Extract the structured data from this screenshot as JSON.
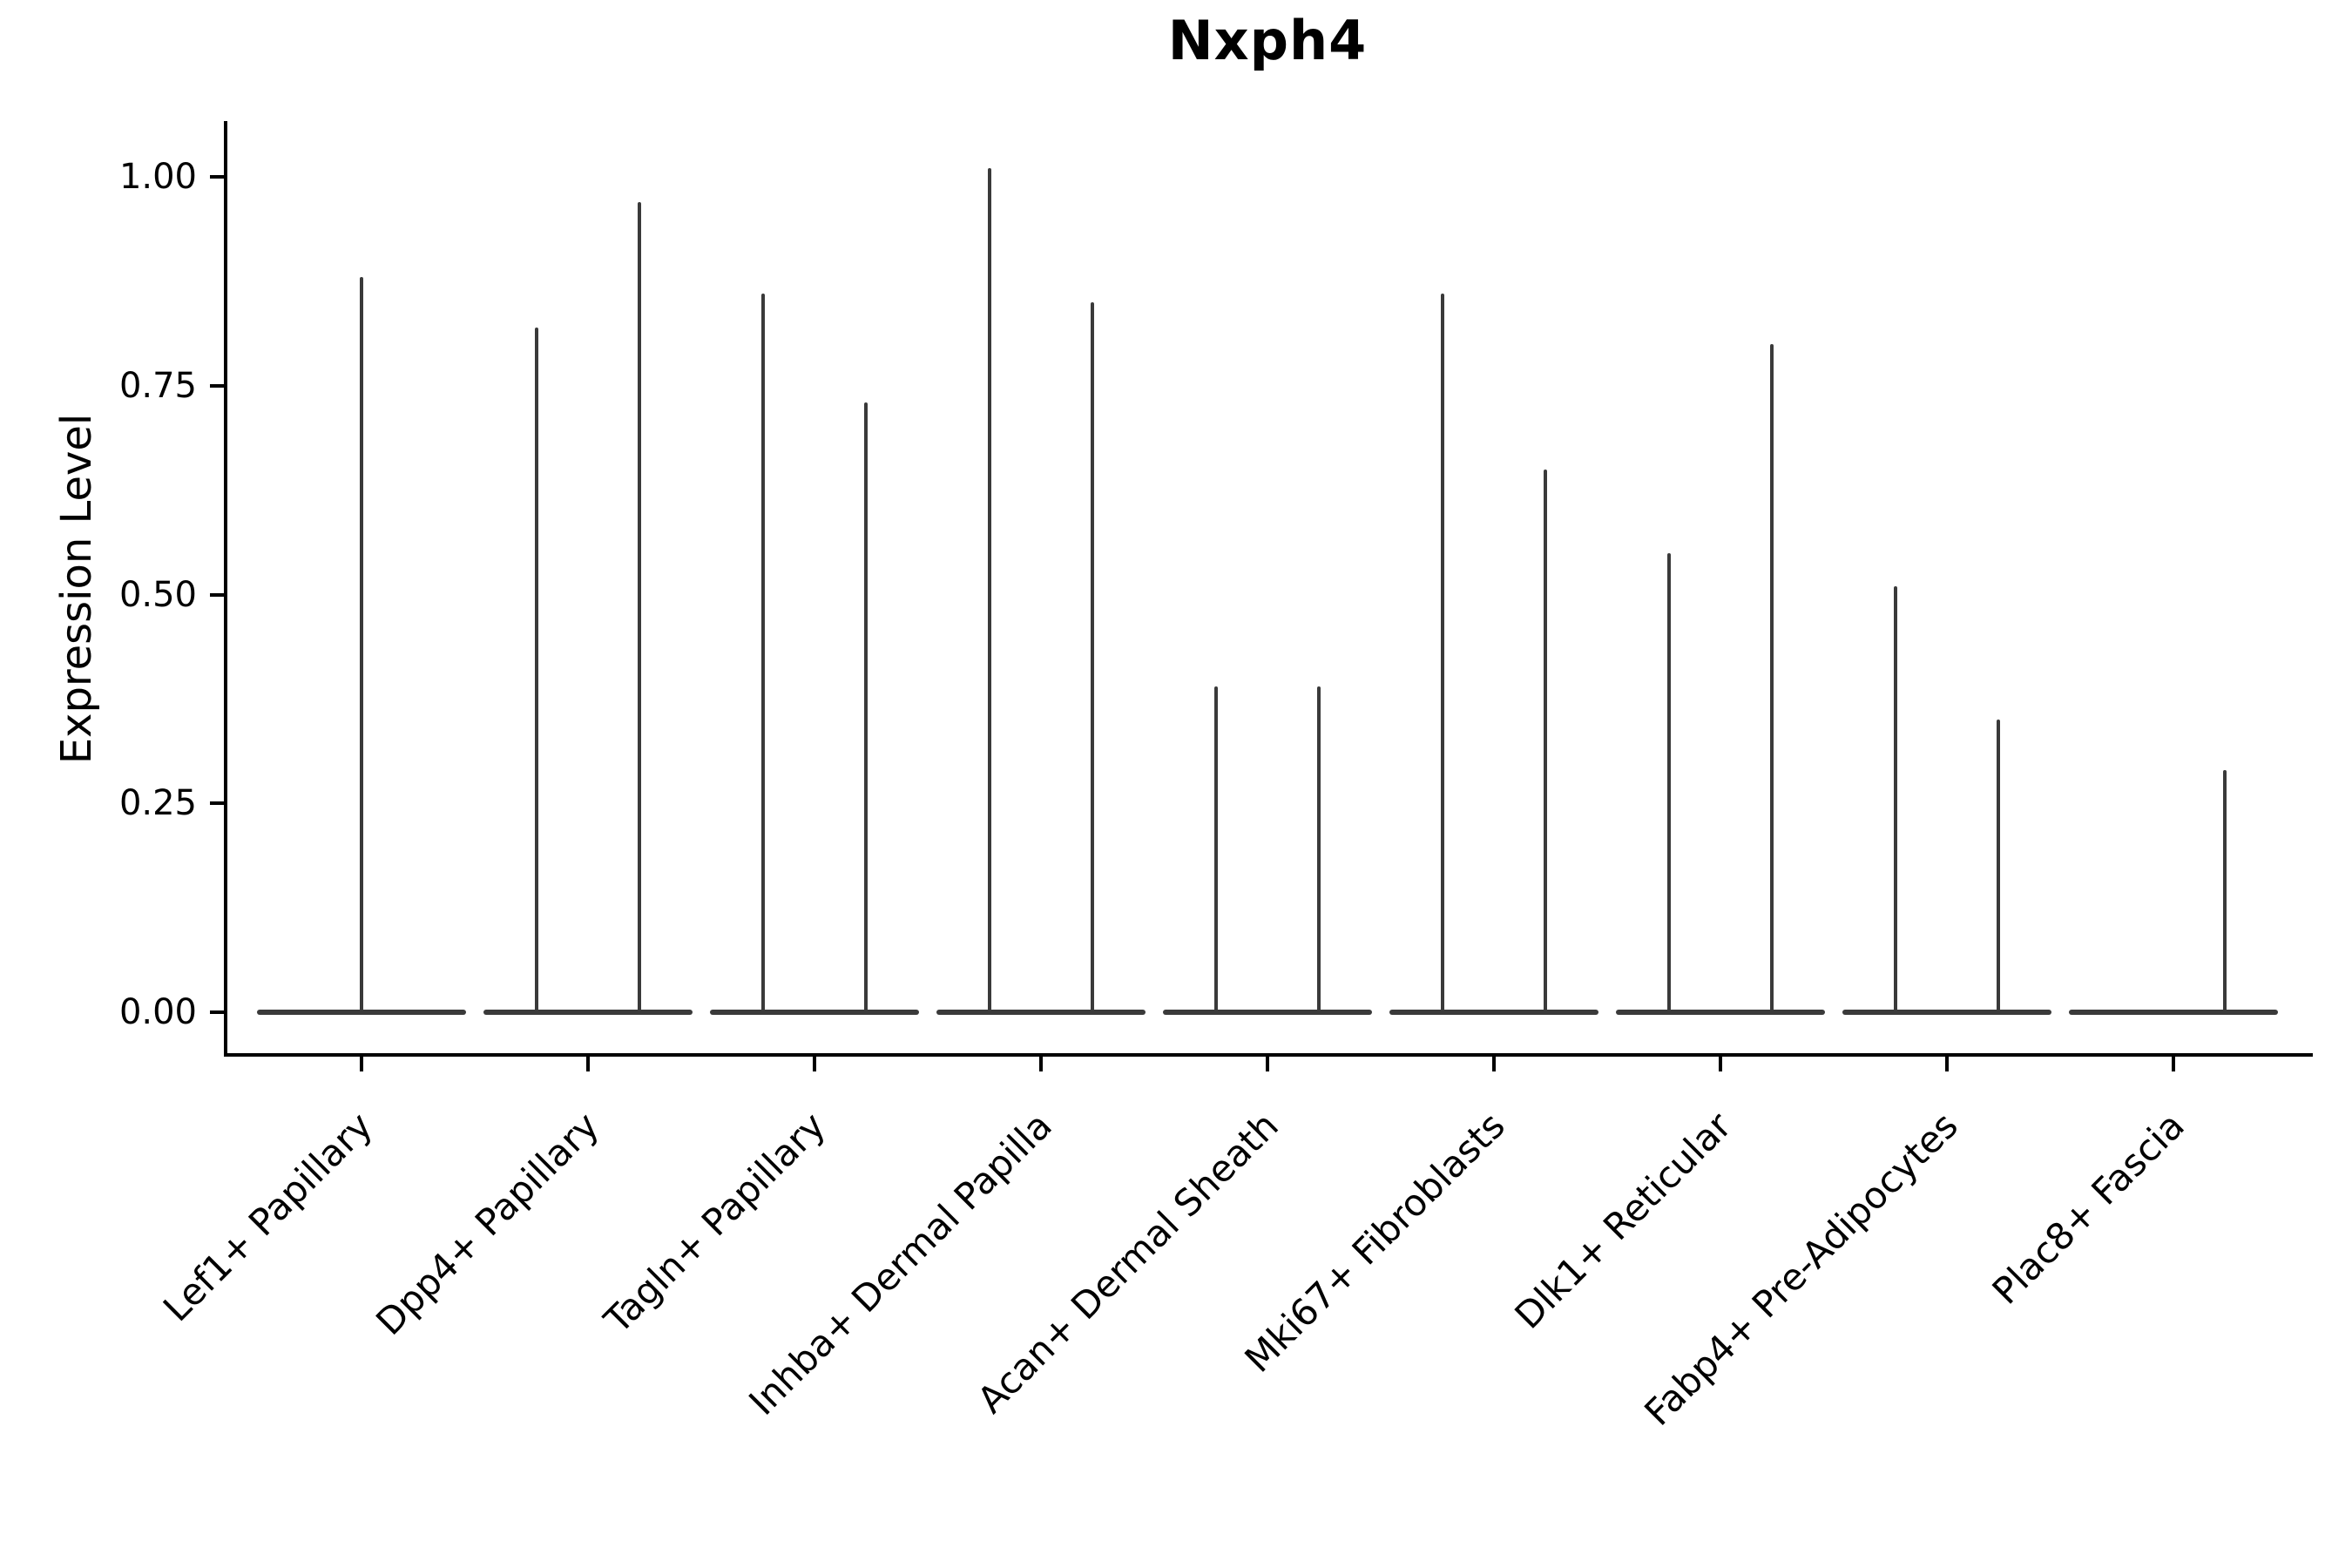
{
  "chart_data": {
    "type": "violin",
    "title": "Nxph4",
    "ylabel": "Expression Level",
    "xlabel": "",
    "yticks": [
      {
        "label": "0.00",
        "value": 0.0
      },
      {
        "label": "0.25",
        "value": 0.25
      },
      {
        "label": "0.50",
        "value": 0.5
      },
      {
        "label": "0.75",
        "value": 0.75
      },
      {
        "label": "1.00",
        "value": 1.0
      }
    ],
    "ylim": [
      -0.05,
      1.07
    ],
    "grid": false,
    "legend_position": "none",
    "categories": [
      "Lef1+ Papillary",
      "Dpp4+ Papillary",
      "Tagln+ Papillary",
      "Inhba+ Dermal Papilla",
      "Acan+ Dermal Sheath",
      "Mki67+ Fibroblasts",
      "Dlk1+ Reticular",
      "Fabp4+ Pre-Adipocytes",
      "Plac8+ Fascia"
    ],
    "violins": [
      {
        "category": "Lef1+ Papillary",
        "spikes": [
          {
            "side": "center",
            "value": 0.88
          }
        ]
      },
      {
        "category": "Dpp4+ Papillary",
        "spikes": [
          {
            "side": "left",
            "value": 0.82
          },
          {
            "side": "right",
            "value": 0.97
          }
        ]
      },
      {
        "category": "Tagln+ Papillary",
        "spikes": [
          {
            "side": "left",
            "value": 0.86
          },
          {
            "side": "right",
            "value": 0.73
          }
        ]
      },
      {
        "category": "Inhba+ Dermal Papilla",
        "spikes": [
          {
            "side": "left",
            "value": 1.01
          },
          {
            "side": "right",
            "value": 0.85
          }
        ]
      },
      {
        "category": "Acan+ Dermal Sheath",
        "spikes": [
          {
            "side": "left",
            "value": 0.39
          },
          {
            "side": "right",
            "value": 0.39
          }
        ]
      },
      {
        "category": "Mki67+ Fibroblasts",
        "spikes": [
          {
            "side": "left",
            "value": 0.86
          },
          {
            "side": "right",
            "value": 0.65
          }
        ]
      },
      {
        "category": "Dlk1+ Reticular",
        "spikes": [
          {
            "side": "left",
            "value": 0.55
          },
          {
            "side": "right",
            "value": 0.8
          }
        ]
      },
      {
        "category": "Fabp4+ Pre-Adipocytes",
        "spikes": [
          {
            "side": "left",
            "value": 0.51
          },
          {
            "side": "right",
            "value": 0.35
          }
        ]
      },
      {
        "category": "Plac8+ Fascia",
        "spikes": [
          {
            "side": "right",
            "value": 0.29
          }
        ]
      }
    ],
    "colors": {
      "violin_line": "#3a3a3a",
      "axis": "#000000",
      "text": "#000000",
      "background": "#ffffff"
    }
  }
}
